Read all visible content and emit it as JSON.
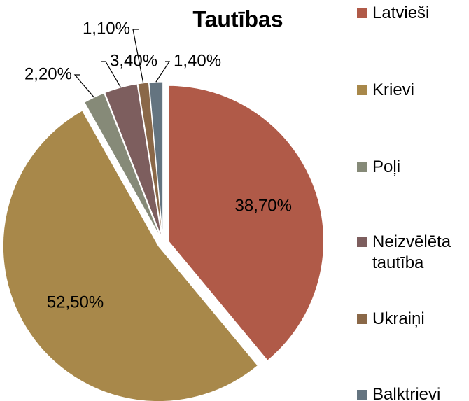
{
  "chart_data": {
    "type": "pie",
    "title": "Tautības",
    "categories": [
      "Latvieši",
      "Krievi",
      "Poļi",
      "Neizvēlēta tautība",
      "Ukraiņi",
      "Balktrievi"
    ],
    "values": [
      38.7,
      52.5,
      2.2,
      3.4,
      1.1,
      1.4
    ],
    "value_labels": [
      "38,70%",
      "52,50%",
      "2,20%",
      "3,40%",
      "1,10%",
      "1,40%"
    ],
    "colors": [
      "#b05a48",
      "#a8884a",
      "#868a78",
      "#7d5e5e",
      "#8a6848",
      "#647480"
    ],
    "legend": "right"
  }
}
